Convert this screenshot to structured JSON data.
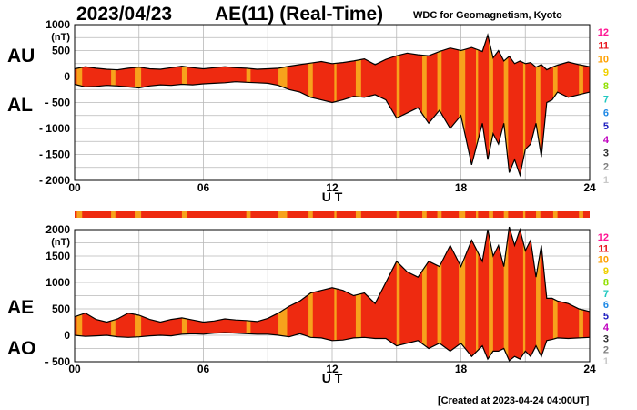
{
  "header": {
    "date": "2023/04/23",
    "title": "AE(11) (Real-Time)",
    "observatory": "WDC for Geomagnetism, Kyoto"
  },
  "footer": "[Created at 2023-04-24 04:00UT]",
  "legend": {
    "stations": [
      "12",
      "11",
      "10",
      "9",
      "8",
      "7",
      "6",
      "5",
      "4",
      "3",
      "2",
      "1"
    ],
    "colors": [
      "#ff1493",
      "#e8141c",
      "#ffa000",
      "#f0d000",
      "#90e000",
      "#20c8c0",
      "#1e88e5",
      "#2020c0",
      "#c000c0",
      "#303030",
      "#808080",
      "#c8c8c8"
    ]
  },
  "colors": {
    "fill_red": "#ee2a10",
    "fill_orange": "#f7a21c",
    "line": "#000000"
  },
  "chart_data": [
    {
      "type": "area",
      "name": "AU/AL",
      "series_labels": [
        "AU",
        "AL"
      ],
      "unit_label": "(nT)",
      "xlabel": "U T",
      "x_ticks": [
        0,
        6,
        12,
        18,
        24
      ],
      "x_tick_labels": [
        "00",
        "06",
        "12",
        "18",
        "24"
      ],
      "xlim": [
        0,
        24
      ],
      "ylim": [
        -2000,
        1000
      ],
      "y_ticks": [
        -2000,
        -1500,
        -1000,
        -500,
        0,
        500,
        1000
      ],
      "y_tick_labels": [
        "- 2000",
        "- 1500",
        "- 1000",
        "- 500",
        "0",
        "500",
        "1000"
      ],
      "x": [
        0,
        0.5,
        1,
        1.5,
        2,
        2.5,
        3,
        3.5,
        4,
        4.5,
        5,
        5.5,
        6,
        6.5,
        7,
        7.5,
        8,
        8.5,
        9,
        9.5,
        10,
        10.5,
        11,
        11.5,
        12,
        12.5,
        13,
        13.5,
        14,
        14.5,
        15,
        15.5,
        16,
        16.5,
        17,
        17.5,
        18,
        18.5,
        19,
        19.25,
        19.5,
        19.75,
        20,
        20.25,
        20.5,
        20.75,
        21,
        21.25,
        21.5,
        21.75,
        22,
        22.25,
        22.5,
        23,
        23.5,
        24
      ],
      "upper": [
        150,
        190,
        160,
        140,
        130,
        160,
        180,
        150,
        140,
        170,
        200,
        170,
        150,
        170,
        190,
        170,
        160,
        140,
        150,
        160,
        200,
        230,
        260,
        290,
        250,
        270,
        300,
        340,
        230,
        330,
        400,
        450,
        420,
        400,
        480,
        550,
        500,
        560,
        480,
        800,
        360,
        500,
        300,
        390,
        250,
        300,
        250,
        270,
        180,
        230,
        130,
        180,
        220,
        280,
        230,
        190
      ],
      "lower": [
        -150,
        -200,
        -190,
        -170,
        -180,
        -200,
        -220,
        -180,
        -160,
        -170,
        -150,
        -160,
        -140,
        -130,
        -120,
        -100,
        -110,
        -120,
        -130,
        -170,
        -250,
        -300,
        -400,
        -450,
        -500,
        -450,
        -380,
        -400,
        -350,
        -450,
        -800,
        -700,
        -600,
        -900,
        -650,
        -1000,
        -750,
        -1700,
        -900,
        -1600,
        -1100,
        -1300,
        -900,
        -1850,
        -1600,
        -1900,
        -1400,
        -1300,
        -900,
        -1550,
        -500,
        -450,
        -300,
        -400,
        -350,
        -300
      ]
    },
    {
      "type": "area",
      "name": "AE/AO",
      "series_labels": [
        "AE",
        "AO"
      ],
      "unit_label": "(nT)",
      "xlabel": "U T",
      "x_ticks": [
        0,
        6,
        12,
        18,
        24
      ],
      "x_tick_labels": [
        "00",
        "06",
        "12",
        "18",
        "24"
      ],
      "xlim": [
        0,
        24
      ],
      "ylim": [
        -500,
        2000
      ],
      "y_ticks": [
        -500,
        0,
        500,
        1000,
        1500,
        2000
      ],
      "y_tick_labels": [
        "- 500",
        "0",
        "500",
        "1000",
        "1500",
        "2000"
      ],
      "x": [
        0,
        0.5,
        1,
        1.5,
        2,
        2.5,
        3,
        3.5,
        4,
        4.5,
        5,
        5.5,
        6,
        6.5,
        7,
        7.5,
        8,
        8.5,
        9,
        9.5,
        10,
        10.5,
        11,
        11.5,
        12,
        12.5,
        13,
        13.5,
        14,
        14.5,
        15,
        15.5,
        16,
        16.5,
        17,
        17.5,
        18,
        18.5,
        19,
        19.25,
        19.5,
        19.75,
        20,
        20.25,
        20.5,
        20.75,
        21,
        21.25,
        21.5,
        21.75,
        22,
        22.25,
        22.5,
        23,
        23.5,
        24
      ],
      "upper": [
        350,
        420,
        300,
        250,
        310,
        420,
        380,
        300,
        250,
        300,
        330,
        290,
        250,
        270,
        310,
        290,
        280,
        260,
        320,
        420,
        550,
        650,
        800,
        850,
        900,
        850,
        750,
        800,
        600,
        1000,
        1400,
        1200,
        1100,
        1400,
        1300,
        1700,
        1300,
        1800,
        1400,
        2000,
        1500,
        1700,
        1300,
        2050,
        1700,
        2000,
        1600,
        1800,
        1100,
        1700,
        700,
        700,
        650,
        600,
        500,
        450
      ],
      "lower": [
        0,
        -20,
        -10,
        0,
        -30,
        -40,
        -30,
        -10,
        0,
        -10,
        20,
        30,
        20,
        40,
        50,
        40,
        30,
        20,
        20,
        0,
        -30,
        30,
        -40,
        -50,
        -100,
        -90,
        -50,
        -40,
        -60,
        -60,
        -200,
        -150,
        -100,
        -250,
        -150,
        -300,
        -150,
        -400,
        -200,
        -450,
        -300,
        -300,
        -250,
        -480,
        -400,
        -450,
        -300,
        -400,
        -200,
        -400,
        -100,
        -80,
        -50,
        -60,
        -50,
        -40
      ]
    }
  ],
  "strip": {
    "top_bar": "station strip"
  }
}
